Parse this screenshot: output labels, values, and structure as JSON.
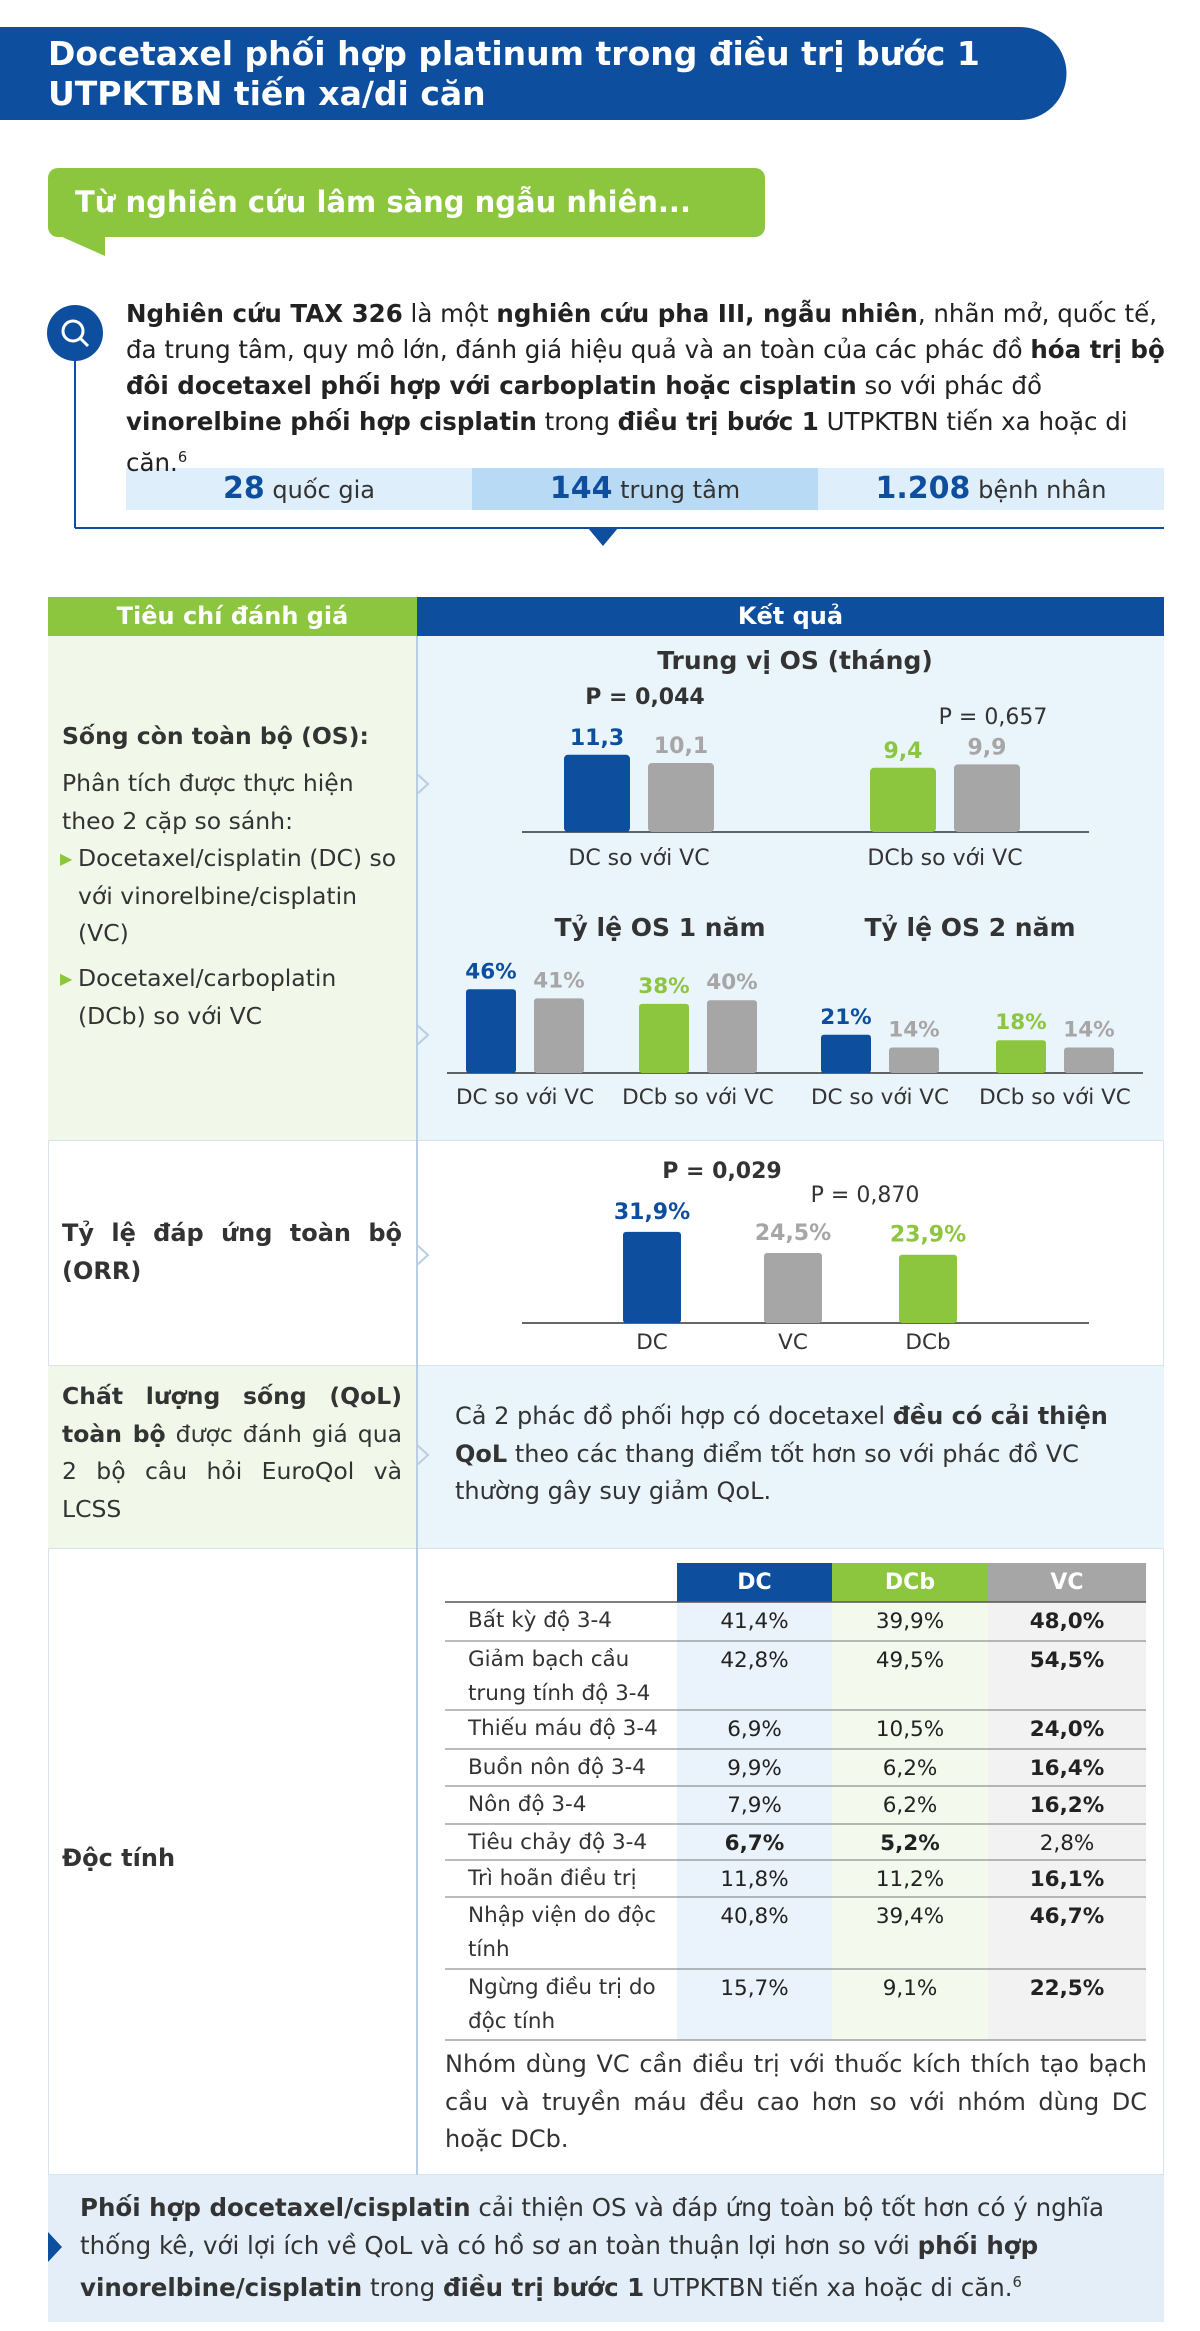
{
  "header": {
    "title_lines": [
      "Docetaxel phối hợp platinum trong điều trị bước 1",
      "UTPKTBN tiến xa/di căn"
    ]
  },
  "banner": "Từ nghiên cứu lâm sàng ngẫu nhiên...",
  "intro": {
    "paragraph": [
      {
        "text": "Nghiên cứu TAX 326",
        "bold": true
      },
      {
        "text": " là một "
      },
      {
        "text": "nghiên cứu pha III, ngẫu nhiên",
        "bold": true
      },
      {
        "text": ", nhãn mở, quốc tế, đa trung tâm, quy mô lớn, đánh giá hiệu quả và an toàn của các phác đồ "
      },
      {
        "text": "hóa trị bộ đôi docetaxel phối hợp với carboplatin hoặc cisplatin",
        "bold": true
      },
      {
        "text": " so với phác đồ "
      },
      {
        "text": "vinorelbine phối hợp cisplatin",
        "bold": true
      },
      {
        "text": " trong "
      },
      {
        "text": "điều trị bước 1",
        "bold": true
      },
      {
        "text": " UTPKTBN tiến xa hoặc di căn."
      },
      {
        "text": "6",
        "sup": true
      }
    ],
    "stats": [
      {
        "number": "28",
        "label": "quốc gia"
      },
      {
        "number": "144",
        "label": "trung tâm"
      },
      {
        "number": "1.208",
        "label": "bệnh nhân"
      }
    ]
  },
  "table": {
    "headers": [
      "Tiêu chí đánh giá",
      "Kết quả"
    ],
    "os": {
      "criterion": {
        "title": "Sống còn toàn bộ (OS):",
        "text": "Phân tích được thực hiện theo 2 cặp so sánh:",
        "bullets": [
          "Docetaxel/cisplatin (DC) so với vinorelbine/cisplatin (VC)",
          "Docetaxel/carboplatin (DCb) so với VC"
        ]
      },
      "median": {
        "title": "Trung vị OS (tháng)",
        "ylim": [
          0,
          12
        ],
        "groups": [
          {
            "category": "DC so với VC",
            "p_value": "P = 0,044",
            "p_bold": true,
            "values": [
              11.3,
              10.1
            ],
            "value_labels": [
              "11,3",
              "10,1"
            ],
            "colors": [
              "#0d4f9e",
              "#a6a6a6"
            ]
          },
          {
            "category": "DCb so với VC",
            "p_value": "P = 0,657",
            "p_bold": false,
            "values": [
              9.4,
              9.9
            ],
            "value_labels": [
              "9,4",
              "9,9"
            ],
            "colors": [
              "#8cc63f",
              "#a6a6a6"
            ]
          }
        ]
      },
      "rates": {
        "ylim": [
          0,
          50
        ],
        "charts": [
          {
            "title": "Tỷ lệ OS 1 năm",
            "groups": [
              {
                "category": "DC so với VC",
                "values": [
                  46,
                  41
                ],
                "value_labels": [
                  "46%",
                  "41%"
                ],
                "colors": [
                  "#0d4f9e",
                  "#a6a6a6"
                ]
              },
              {
                "category": "DCb so với VC",
                "values": [
                  38,
                  40
                ],
                "value_labels": [
                  "38%",
                  "40%"
                ],
                "colors": [
                  "#8cc63f",
                  "#a6a6a6"
                ]
              }
            ]
          },
          {
            "title": "Tỷ lệ OS 2 năm",
            "groups": [
              {
                "category": "DC so với VC",
                "values": [
                  21,
                  14
                ],
                "value_labels": [
                  "21%",
                  "14%"
                ],
                "colors": [
                  "#0d4f9e",
                  "#a6a6a6"
                ]
              },
              {
                "category": "DCb so với VC",
                "values": [
                  18,
                  14
                ],
                "value_labels": [
                  "18%",
                  "14%"
                ],
                "colors": [
                  "#8cc63f",
                  "#a6a6a6"
                ]
              }
            ]
          }
        ]
      }
    },
    "orr": {
      "criterion": "Tỷ lệ đáp ứng toàn bộ (ORR)",
      "chart": {
        "ylim": [
          0,
          35
        ],
        "categories": [
          "DC",
          "VC",
          "DCb"
        ],
        "values": [
          31.9,
          24.5,
          23.9
        ],
        "value_labels": [
          "31,9%",
          "24,5%",
          "23,9%"
        ],
        "colors": [
          "#0d4f9e",
          "#a6a6a6",
          "#8cc63f"
        ],
        "p_values": [
          {
            "text": "P = 0,029",
            "bold": true
          },
          {
            "text": "P = 0,870",
            "bold": false
          }
        ]
      }
    },
    "qol": {
      "criterion": [
        {
          "text": "Chất lượng sống (QoL) toàn bộ",
          "bold": true
        },
        {
          "text": " được đánh giá qua 2 bộ câu hỏi EuroQol và LCSS"
        }
      ],
      "result": [
        {
          "text": "Cả 2 phác đồ phối hợp có docetaxel "
        },
        {
          "text": "đều có cải thiện QoL",
          "bold": true
        },
        {
          "text": " theo các thang điểm tốt hơn so với phác đồ VC thường gây suy giảm QoL."
        }
      ]
    },
    "toxicity": {
      "criterion": "Độc tính",
      "columns": [
        {
          "name": "DC",
          "color": "#0d4f9e",
          "tint": "#eaf3fb"
        },
        {
          "name": "DCb",
          "color": "#8cc63f",
          "tint": "#f3f9ec"
        },
        {
          "name": "VC",
          "color": "#a6a6a6",
          "tint": "#f2f2f2"
        }
      ],
      "rows": [
        {
          "label": "Bất kỳ độ 3-4",
          "cells": [
            "41,4%",
            "39,9%",
            "48,0%"
          ],
          "bold": [
            false,
            false,
            true
          ]
        },
        {
          "label": "Giảm bạch cầu trung tính độ 3-4",
          "cells": [
            "42,8%",
            "49,5%",
            "54,5%"
          ],
          "bold": [
            false,
            false,
            true
          ]
        },
        {
          "label": "Thiếu máu độ 3-4",
          "cells": [
            "6,9%",
            "10,5%",
            "24,0%"
          ],
          "bold": [
            false,
            false,
            true
          ]
        },
        {
          "label": "Buồn nôn độ 3-4",
          "cells": [
            "9,9%",
            "6,2%",
            "16,4%"
          ],
          "bold": [
            false,
            false,
            true
          ]
        },
        {
          "label": "Nôn độ 3-4",
          "cells": [
            "7,9%",
            "6,2%",
            "16,2%"
          ],
          "bold": [
            false,
            false,
            true
          ]
        },
        {
          "label": "Tiêu chảy độ 3-4",
          "cells": [
            "6,7%",
            "5,2%",
            "2,8%"
          ],
          "bold": [
            true,
            true,
            false
          ]
        },
        {
          "label": "Trì hoãn điều trị",
          "cells": [
            "11,8%",
            "11,2%",
            "16,1%"
          ],
          "bold": [
            false,
            false,
            true
          ]
        },
        {
          "label": "Nhập viện do độc tính",
          "cells": [
            "40,8%",
            "39,4%",
            "46,7%"
          ],
          "bold": [
            false,
            false,
            true
          ]
        },
        {
          "label": "Ngừng điều trị do độc tính",
          "cells": [
            "15,7%",
            "9,1%",
            "22,5%"
          ],
          "bold": [
            false,
            false,
            true
          ]
        }
      ],
      "note": "Nhóm dùng VC cần điều trị với thuốc kích thích tạo bạch cầu và truyền máu đều cao hơn so với nhóm dùng DC hoặc DCb."
    }
  },
  "conclusion": [
    {
      "text": "Phối hợp docetaxel/cisplatin",
      "bold": true
    },
    {
      "text": " cải thiện OS và đáp ứng toàn bộ tốt hơn có ý nghĩa thống kê, với lợi ích về QoL và có hồ sơ an toàn thuận lợi hơn so với "
    },
    {
      "text": "phối hợp vinorelbine/cisplatin",
      "bold": true
    },
    {
      "text": " trong "
    },
    {
      "text": "điều trị bước 1",
      "bold": true
    },
    {
      "text": " UTPKTBN tiến xa hoặc di căn."
    },
    {
      "text": "6",
      "sup": true
    }
  ]
}
